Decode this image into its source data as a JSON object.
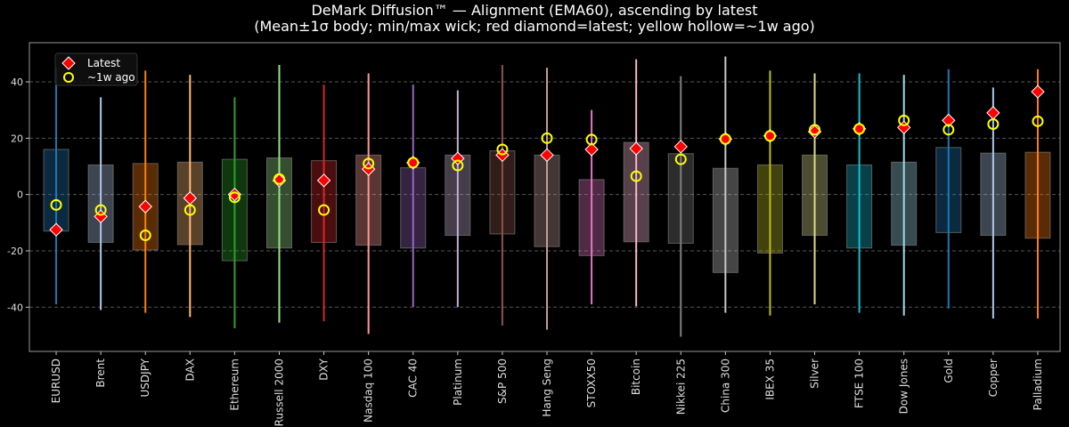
{
  "chart_data": {
    "type": "box",
    "title": "DeMark Diffusion™ — Alignment (EMA60), ascending by latest",
    "subtitle": "(Mean±1σ body; min/max wick; red diamond=latest; yellow hollow=~1w ago)",
    "xlabel": "",
    "ylabel": "",
    "ylim": [
      -55.7,
      53.9
    ],
    "yticks": [
      -40,
      -20,
      0,
      20,
      40
    ],
    "grid": "horizontal dashed",
    "legend": {
      "placement": "top-left",
      "entries": [
        "Latest",
        "~1w ago"
      ]
    },
    "colors": {
      "latest": "#ff0000",
      "week_ago": "#ffff00",
      "background": "#000000"
    },
    "categories": [
      "EURUSD",
      "Brent",
      "USDJPY",
      "DAX",
      "Ethereum",
      "Russell 2000",
      "DXY",
      "Nasdaq 100",
      "CAC 40",
      "Platinum",
      "S&P 500",
      "Hang Seng",
      "STOXX50",
      "Bitcoin",
      "Nikkei 225",
      "China 300",
      "IBEX 35",
      "Silver",
      "FTSE 100",
      "Dow Jones",
      "Gold",
      "Copper",
      "Palladium"
    ],
    "series_colors": [
      "#1f77b4",
      "#aec7e8",
      "#ff7f0e",
      "#ffbb78",
      "#2ca02c",
      "#98df8a",
      "#d62728",
      "#ff9896",
      "#9467bd",
      "#c5b0d5",
      "#8c564b",
      "#c49c94",
      "#e377c2",
      "#f7b6d2",
      "#7f7f7f",
      "#c7c7c7",
      "#bcbd22",
      "#dbdb8d",
      "#17becf",
      "#9edae5",
      "#1f77b4",
      "#aec7e8",
      "#ff7f0e"
    ],
    "body_high": [
      16,
      10.5,
      11,
      11.5,
      12.5,
      13,
      12,
      14,
      9.5,
      14,
      15.5,
      14,
      5.3,
      18.5,
      14.5,
      9.3,
      10.5,
      14,
      10.5,
      11.5,
      16.7,
      14.7,
      15
    ],
    "body_low": [
      -13,
      -17,
      -19.7,
      -17.8,
      -23.5,
      -19,
      -17,
      -18,
      -19,
      -14.5,
      -14,
      -18.5,
      -21.7,
      -16.8,
      -17.3,
      -27.7,
      -20.8,
      -14.5,
      -19,
      -18,
      -13.5,
      -14.5,
      -15.5
    ],
    "max": [
      45,
      34.5,
      44,
      42.5,
      34.5,
      46,
      39,
      43,
      39,
      37,
      46,
      45,
      30,
      48,
      42,
      49,
      44,
      43,
      43,
      42.5,
      44.5,
      38,
      44.5
    ],
    "min": [
      -39,
      -41,
      -42,
      -43.5,
      -47.5,
      -45.5,
      -45,
      -49.5,
      -40,
      -40,
      -46.5,
      -48,
      -39,
      -39.7,
      -50.5,
      -42,
      -43,
      -39,
      -42,
      -43,
      -40.5,
      -44,
      -44
    ],
    "latest": [
      -12.5,
      -7.8,
      -4.3,
      -1.3,
      0,
      5,
      5,
      9,
      11.3,
      12.8,
      14,
      14,
      16,
      16.3,
      17,
      19.7,
      20.8,
      22.3,
      23.3,
      23.8,
      26.3,
      29,
      36.5
    ],
    "week_ago": [
      -3.7,
      -5.5,
      -14.5,
      -5.5,
      -1,
      5.5,
      -5.5,
      11,
      11.3,
      10.3,
      16,
      20,
      19.5,
      6.5,
      12.5,
      19.7,
      20.8,
      23,
      23.3,
      26.3,
      23,
      25,
      26
    ]
  }
}
